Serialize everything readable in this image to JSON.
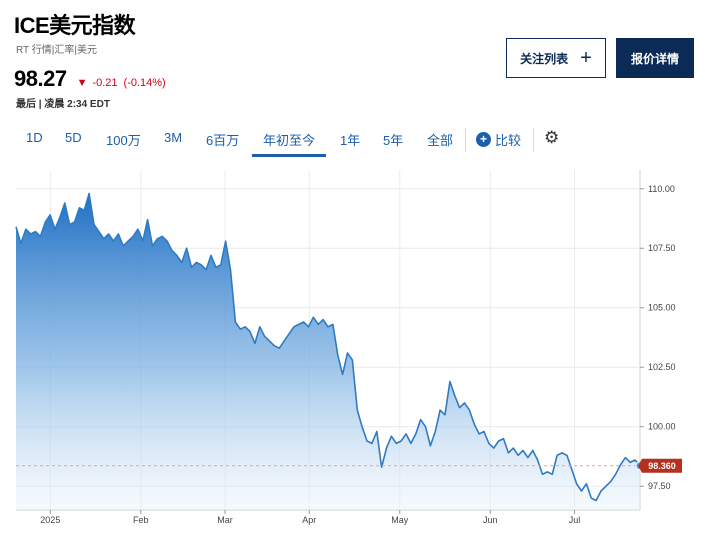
{
  "header": {
    "title": "ICE美元指数",
    "subtitle": "RT 行情|汇率|美元",
    "price": "98.27",
    "change": "-0.21",
    "change_pct": "(-0.14%)",
    "timestamp": "最后 | 凌晨 2:34 EDT",
    "watch_label": "关注列表",
    "quote_label": "报价详情"
  },
  "tabs": [
    "1D",
    "5D",
    "100万",
    "3M",
    "6百万",
    "年初至今",
    "1年",
    "5年",
    "全部"
  ],
  "active_tab": "年初至今",
  "compare_label": "比较",
  "colors": {
    "accent": "#1d5fa8",
    "negative": "#d0021b",
    "line": "#2f7bc2",
    "button_dark": "#0b2a55",
    "last_price_tag": "#b5301f"
  },
  "chart_data": {
    "type": "area",
    "x_labels": [
      "2025",
      "Feb",
      "Mar",
      "Apr",
      "May",
      "Jun",
      "Jul"
    ],
    "y_ticks": [
      "110.00",
      "107.50",
      "105.00",
      "102.50",
      "100.00",
      "97.50"
    ],
    "ylim": [
      96.5,
      110.2
    ],
    "last_price_label": "98.360",
    "last_price": 98.36,
    "grid": true,
    "series": [
      {
        "values": [
          108.4,
          107.7,
          108.3,
          108.1,
          108.2,
          108.0,
          108.6,
          108.9,
          108.3,
          108.8,
          109.4,
          108.5,
          108.6,
          109.2,
          109.1,
          109.8,
          108.5,
          108.2,
          107.9,
          108.1,
          107.8,
          108.1,
          107.6,
          107.8,
          108.0,
          108.3,
          107.8,
          108.7,
          107.6,
          107.9,
          108.0,
          107.8,
          107.4,
          107.2,
          106.9,
          107.5,
          106.7,
          106.9,
          106.8,
          106.6,
          107.2,
          106.7,
          106.8,
          107.8,
          106.6,
          104.4,
          104.1,
          104.2,
          104.0,
          103.5,
          104.2,
          103.8,
          103.6,
          103.4,
          103.3,
          103.6,
          103.9,
          104.2,
          104.3,
          104.4,
          104.2,
          104.6,
          104.3,
          104.5,
          104.2,
          104.3,
          103.0,
          102.2,
          103.1,
          102.8,
          100.7,
          100.0,
          99.4,
          99.3,
          99.8,
          98.3,
          99.1,
          99.6,
          99.3,
          99.4,
          99.7,
          99.3,
          99.7,
          100.3,
          100.0,
          99.2,
          99.8,
          100.7,
          100.5,
          101.9,
          101.3,
          100.8,
          101.0,
          100.7,
          100.1,
          99.7,
          99.8,
          99.3,
          99.1,
          99.4,
          99.5,
          98.9,
          99.1,
          98.8,
          99.0,
          98.7,
          99.0,
          98.6,
          98.0,
          98.1,
          98.0,
          98.8,
          98.9,
          98.8,
          98.2,
          97.6,
          97.3,
          97.6,
          97.0,
          96.9,
          97.3,
          97.5,
          97.7,
          98.0,
          98.4,
          98.7,
          98.5,
          98.6,
          98.36
        ]
      }
    ]
  }
}
